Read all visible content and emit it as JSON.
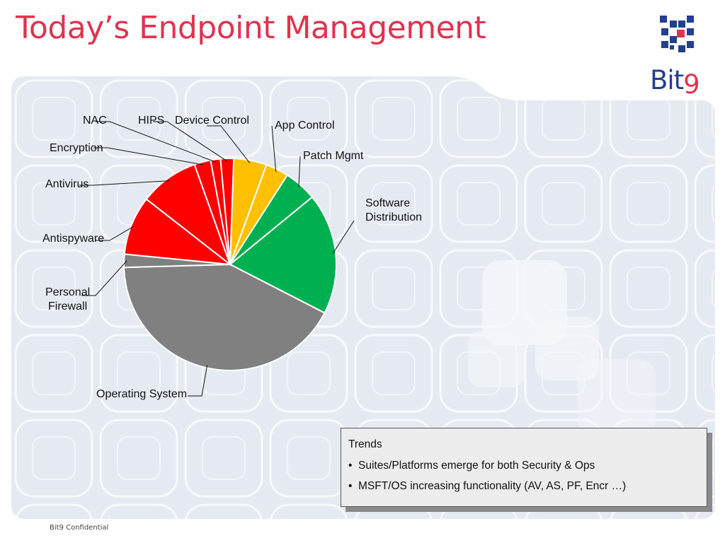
{
  "slide": {
    "title": "Today’s Endpoint Management",
    "footer": "Bit9 Confidential"
  },
  "logo": {
    "word_main": "Bit",
    "word_accent": "9",
    "color_blue": "#23408f",
    "color_red": "#e0334f"
  },
  "chart_data": {
    "type": "pie",
    "title": "",
    "series": [
      {
        "categories": [
          "App Control",
          "Patch Mgmt",
          "Software Distribution",
          "Operating System",
          "Personal Firewall",
          "Antispyware",
          "Antivirus",
          "Encryption",
          "NAC",
          "HIPS",
          "Device Control"
        ],
        "values": [
          3.5,
          5,
          18.5,
          42,
          2,
          9,
          9,
          2.5,
          1.5,
          2,
          5
        ],
        "colors": [
          "#fec000",
          "#00b050",
          "#00b050",
          "#808080",
          "#808080",
          "#ff0000",
          "#ff0000",
          "#ff0000",
          "#ff0000",
          "#ff0000",
          "#fec000"
        ]
      }
    ],
    "labels": [
      {
        "text": "App Control"
      },
      {
        "text": "Patch Mgmt"
      },
      {
        "lines": [
          "Software",
          "Distribution"
        ]
      },
      {
        "text": "Operating System"
      },
      {
        "lines": [
          "Personal",
          "Firewall"
        ]
      },
      {
        "text": "Antispyware"
      },
      {
        "text": "Antivirus"
      },
      {
        "text": "Encryption"
      },
      {
        "text": "NAC"
      },
      {
        "text": "HIPS"
      },
      {
        "text": "Device Control"
      }
    ]
  },
  "trends": {
    "title": "Trends",
    "items": [
      "Suites/Platforms emerge for both Security & Ops",
      "MSFT/OS increasing functionality (AV, AS, PF, Encr …)"
    ]
  }
}
